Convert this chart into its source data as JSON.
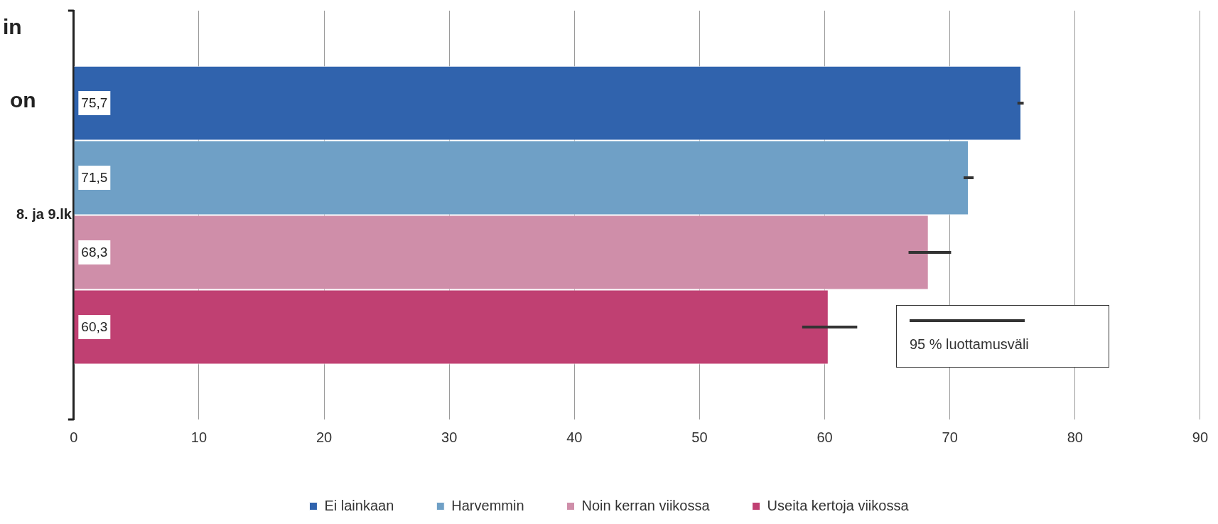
{
  "chart_data": {
    "type": "bar",
    "orientation": "horizontal",
    "categories": [
      "8. ja 9.lk"
    ],
    "series": [
      {
        "name": "Ei lainkaan",
        "color": "#3063ad",
        "values": [
          75.7
        ],
        "value_labels": [
          "75,7"
        ],
        "errors": [
          [
            75.4,
            75.9
          ]
        ]
      },
      {
        "name": "Harvemmin",
        "color": "#6fa0c6",
        "values": [
          71.5
        ],
        "value_labels": [
          "71,5"
        ],
        "errors": [
          [
            71.1,
            71.9
          ]
        ]
      },
      {
        "name": "Noin kerran viikossa",
        "color": "#cf8ea9",
        "values": [
          68.3
        ],
        "value_labels": [
          "68,3"
        ],
        "errors": [
          [
            66.7,
            70.1
          ]
        ]
      },
      {
        "name": "Useita kertoja viikossa",
        "color": "#c04072",
        "values": [
          60.3
        ],
        "value_labels": [
          "60,3"
        ],
        "errors": [
          [
            58.2,
            62.6
          ]
        ]
      }
    ],
    "xlim": [
      0,
      90
    ],
    "xticks": [
      0,
      10,
      20,
      30,
      40,
      50,
      60,
      70,
      80,
      90
    ],
    "grid": "x",
    "legend": "bottom",
    "annotations": [
      "95 % luottamusväli",
      "in",
      "on"
    ]
  }
}
